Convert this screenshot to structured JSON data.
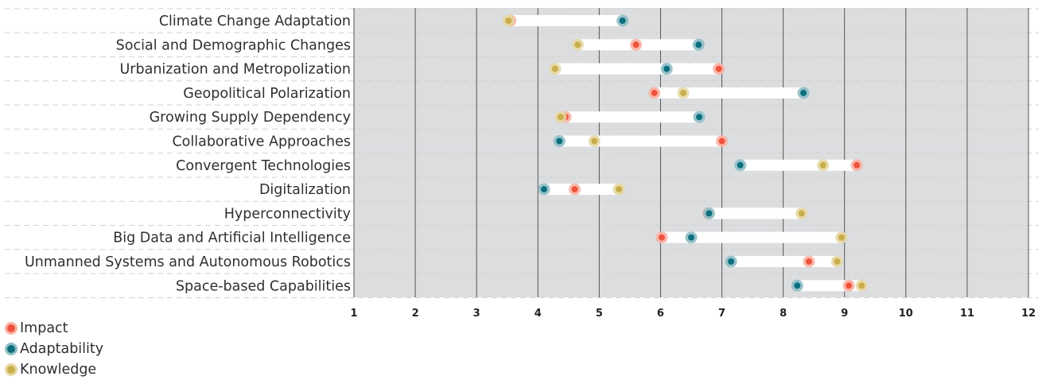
{
  "chart_data": {
    "type": "dumbbell",
    "xlim": [
      1,
      12
    ],
    "x_ticks": [
      "1",
      "2",
      "3",
      "4",
      "5",
      "6",
      "7",
      "8",
      "9",
      "10",
      "11",
      "12"
    ],
    "grid": true,
    "legend_position": "bottom-left",
    "categories": [
      "Climate Change Adaptation",
      "Social and Demographic Changes",
      "Urbanization and Metropolization",
      "Geopolitical Polarization",
      "Growing Supply Dependency",
      "Collaborative Approaches",
      "Convergent Technologies",
      "Digitalization",
      "Hyperconnectivity",
      "Big Data and Artificial Intelligence",
      "Unmanned Systems and Autonomous Robotics",
      "Space-based Capabilities"
    ],
    "series": [
      {
        "name": "Impact",
        "color": "#f0533d",
        "halo": "#f7b3a4",
        "values": [
          3.55,
          5.6,
          6.95,
          5.9,
          4.45,
          7.0,
          9.2,
          4.6,
          6.78,
          6.02,
          8.42,
          9.07
        ]
      },
      {
        "name": "Adaptability",
        "color": "#0d6f7d",
        "halo": "#8fbec6",
        "values": [
          5.38,
          6.62,
          6.1,
          8.33,
          6.63,
          4.35,
          7.3,
          4.1,
          6.79,
          6.5,
          7.15,
          8.23
        ]
      },
      {
        "name": "Knowledge",
        "color": "#c8ad4c",
        "halo": "#e6d8a4",
        "values": [
          3.52,
          4.65,
          4.28,
          6.37,
          4.37,
          4.92,
          8.65,
          5.32,
          8.3,
          8.95,
          8.88,
          9.28
        ]
      }
    ]
  },
  "legend": [
    {
      "label": "Impact",
      "color": "#f0533d"
    },
    {
      "label": "Adaptability",
      "color": "#0d6f7d"
    },
    {
      "label": "Knowledge",
      "color": "#c8ad4c"
    }
  ],
  "colors": {
    "plot_background": "#dcdddf",
    "bar": "#ffffff",
    "grid": "#555555"
  }
}
